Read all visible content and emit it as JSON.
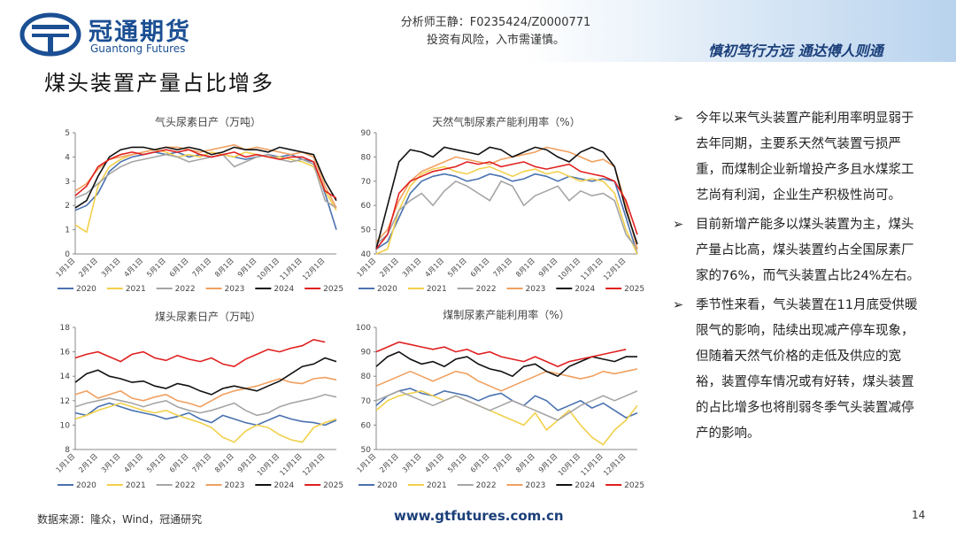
{
  "header": {
    "logo_cn": "冠通期货",
    "logo_en": "Guantong Futures",
    "analyst": "分析师王静：F0235424/Z0000771",
    "risk": "投资有风险，入市需谨慎。",
    "slogan": "慎初笃行方远  通达傅人则通"
  },
  "title": "煤头装置产量占比增多",
  "chart_data": [
    {
      "type": "line",
      "title": "气头尿素日产（万吨）",
      "categories": [
        "1月1日",
        null,
        "2月1日",
        null,
        "3月1日",
        null,
        "4月1日",
        null,
        "5月1日",
        null,
        "6月1日",
        null,
        "7月1日",
        null,
        "8月1日",
        null,
        "9月1日",
        null,
        "10月1日",
        null,
        "11月1日",
        null,
        "12月1日",
        null
      ],
      "ylim": [
        0,
        5
      ],
      "yticks": [
        0,
        1,
        2,
        3,
        4,
        5
      ],
      "series": [
        {
          "name": "2020",
          "color": "#4a72b0",
          "values": [
            1.8,
            2.0,
            2.5,
            3.4,
            3.8,
            4.0,
            4.1,
            4.2,
            4.1,
            4.2,
            4.0,
            4.1,
            4.0,
            4.1,
            4.0,
            3.9,
            4.0,
            4.1,
            4.0,
            4.1,
            3.9,
            3.8,
            2.5,
            1.0
          ]
        },
        {
          "name": "2021",
          "color": "#f2d04b",
          "values": [
            1.2,
            0.9,
            2.8,
            3.6,
            3.9,
            4.1,
            4.2,
            4.3,
            4.2,
            4.0,
            4.1,
            4.0,
            4.2,
            4.1,
            4.0,
            4.2,
            4.1,
            4.0,
            4.0,
            3.9,
            3.8,
            3.6,
            2.6,
            1.8
          ]
        },
        {
          "name": "2022",
          "color": "#a5a5a5",
          "values": [
            2.3,
            2.5,
            2.9,
            3.3,
            3.6,
            3.8,
            3.9,
            4.0,
            4.1,
            4.0,
            3.8,
            3.9,
            4.0,
            4.1,
            3.6,
            3.8,
            4.0,
            4.1,
            3.9,
            3.8,
            3.9,
            3.7,
            2.2,
            1.9
          ]
        },
        {
          "name": "2023",
          "color": "#f0a060",
          "values": [
            2.6,
            2.9,
            3.5,
            3.9,
            4.0,
            4.1,
            4.2,
            4.3,
            4.4,
            4.4,
            4.3,
            4.2,
            4.3,
            4.4,
            4.5,
            4.3,
            4.4,
            4.3,
            4.2,
            4.1,
            4.2,
            4.0,
            2.8,
            1.9
          ]
        },
        {
          "name": "2024",
          "color": "#111111",
          "values": [
            1.9,
            2.2,
            3.2,
            4.0,
            4.3,
            4.4,
            4.4,
            4.3,
            4.4,
            4.3,
            4.4,
            4.3,
            4.1,
            4.2,
            4.4,
            4.3,
            4.3,
            4.2,
            4.4,
            4.3,
            4.2,
            4.1,
            3.0,
            2.2
          ]
        },
        {
          "name": "2025",
          "color": "#e02020",
          "values": [
            2.4,
            2.8,
            3.6,
            3.9,
            4.1,
            4.2,
            4.1,
            4.2,
            4.3,
            4.2,
            4.3,
            4.1,
            4.0,
            4.1,
            4.2,
            4.0,
            4.1,
            4.0,
            3.9,
            4.0,
            4.0,
            3.8,
            2.6,
            2.3
          ]
        }
      ]
    },
    {
      "type": "line",
      "title": "天然气制尿素产能利用率（%）",
      "categories": [
        "1月1日",
        null,
        "2月1日",
        null,
        "3月1日",
        null,
        "4月1日",
        null,
        "5月1日",
        null,
        "6月1日",
        null,
        "7月1日",
        null,
        "8月1日",
        null,
        "9月1日",
        null,
        "10月1日",
        null,
        "11月1日",
        null,
        "12月1日",
        null
      ],
      "ylim": [
        40,
        90
      ],
      "yticks": [
        40,
        50,
        60,
        70,
        80,
        90
      ],
      "series": [
        {
          "name": "2020",
          "color": "#4a72b0",
          "values": [
            42,
            45,
            55,
            65,
            70,
            72,
            73,
            72,
            70,
            71,
            73,
            72,
            70,
            71,
            73,
            72,
            70,
            72,
            71,
            70,
            71,
            70,
            55,
            40
          ]
        },
        {
          "name": "2021",
          "color": "#f2d04b",
          "values": [
            40,
            42,
            58,
            68,
            73,
            75,
            76,
            74,
            73,
            75,
            76,
            74,
            72,
            74,
            75,
            73,
            74,
            72,
            70,
            71,
            70,
            65,
            50,
            40
          ]
        },
        {
          "name": "2022",
          "color": "#a5a5a5",
          "values": [
            44,
            48,
            58,
            62,
            65,
            60,
            66,
            70,
            68,
            65,
            62,
            70,
            68,
            60,
            64,
            66,
            68,
            62,
            66,
            64,
            65,
            62,
            48,
            42
          ]
        },
        {
          "name": "2023",
          "color": "#f0a060",
          "values": [
            45,
            50,
            62,
            70,
            74,
            76,
            78,
            80,
            79,
            78,
            77,
            79,
            80,
            81,
            82,
            84,
            83,
            82,
            80,
            78,
            79,
            76,
            60,
            42
          ]
        },
        {
          "name": "2024",
          "color": "#111111",
          "values": [
            42,
            60,
            78,
            83,
            82,
            80,
            84,
            83,
            82,
            81,
            84,
            83,
            80,
            82,
            84,
            83,
            80,
            78,
            82,
            84,
            82,
            76,
            58,
            44
          ]
        },
        {
          "name": "2025",
          "color": "#e02020",
          "values": [
            42,
            48,
            65,
            70,
            72,
            74,
            75,
            76,
            78,
            77,
            78,
            76,
            77,
            78,
            76,
            75,
            76,
            77,
            74,
            73,
            72,
            70,
            62,
            48
          ]
        }
      ]
    },
    {
      "type": "line",
      "title": "煤头尿素日产（万吨）",
      "categories": [
        "1月1日",
        null,
        "2月1日",
        null,
        "3月1日",
        null,
        "4月1日",
        null,
        "5月1日",
        null,
        "6月1日",
        null,
        "7月1日",
        null,
        "8月1日",
        null,
        "9月1日",
        null,
        "10月1日",
        null,
        "11月1日",
        null,
        "12月1日",
        null
      ],
      "ylim": [
        8,
        18
      ],
      "yticks": [
        8,
        10,
        12,
        14,
        16,
        18
      ],
      "series": [
        {
          "name": "2020",
          "color": "#4a72b0",
          "values": [
            11.0,
            10.8,
            11.5,
            11.8,
            11.5,
            11.2,
            11.0,
            10.8,
            10.5,
            10.7,
            11.0,
            10.5,
            10.2,
            10.8,
            10.5,
            10.2,
            10.0,
            10.4,
            10.8,
            10.5,
            10.3,
            10.2,
            10.0,
            10.4
          ]
        },
        {
          "name": "2021",
          "color": "#f2d04b",
          "values": [
            10.5,
            10.8,
            11.2,
            11.5,
            11.8,
            11.5,
            11.2,
            11.0,
            11.2,
            10.8,
            10.5,
            10.2,
            9.8,
            9.0,
            8.6,
            9.5,
            10.0,
            9.8,
            9.2,
            8.8,
            8.6,
            9.8,
            10.2,
            10.5
          ]
        },
        {
          "name": "2022",
          "color": "#a5a5a5",
          "values": [
            11.5,
            11.8,
            12.0,
            12.2,
            12.0,
            11.8,
            11.5,
            11.8,
            12.0,
            11.5,
            11.2,
            11.0,
            11.2,
            11.5,
            11.8,
            11.2,
            10.8,
            11.0,
            11.5,
            11.8,
            12.0,
            12.2,
            12.5,
            12.3
          ]
        },
        {
          "name": "2023",
          "color": "#f0a060",
          "values": [
            12.5,
            12.8,
            12.2,
            12.5,
            12.8,
            12.2,
            12.0,
            12.3,
            12.5,
            12.0,
            11.8,
            11.5,
            12.0,
            12.5,
            12.8,
            13.0,
            13.2,
            13.5,
            13.8,
            13.5,
            13.4,
            13.8,
            13.9,
            13.7
          ]
        },
        {
          "name": "2024",
          "color": "#111111",
          "values": [
            13.5,
            14.2,
            14.5,
            14.0,
            13.8,
            13.5,
            13.6,
            13.2,
            13.0,
            13.4,
            13.2,
            12.8,
            12.5,
            13.0,
            13.2,
            13.0,
            12.8,
            13.2,
            13.6,
            14.2,
            14.8,
            15.0,
            15.5,
            15.2
          ]
        },
        {
          "name": "2025",
          "color": "#e02020",
          "values": [
            15.5,
            15.8,
            16.0,
            15.6,
            15.2,
            15.8,
            16.0,
            15.5,
            15.3,
            15.7,
            15.4,
            15.2,
            15.5,
            15.0,
            14.8,
            15.4,
            15.8,
            16.2,
            16.0,
            16.3,
            16.5,
            17.0,
            16.8,
            null
          ]
        }
      ]
    },
    {
      "type": "line",
      "title": "煤制尿素产能利用率（%）",
      "categories": [
        "1月1日",
        null,
        "2月1日",
        null,
        "3月1日",
        null,
        "4月1日",
        null,
        "5月1日",
        null,
        "6月1日",
        null,
        "7月1日",
        null,
        "8月1日",
        null,
        "9月1日",
        null,
        "10月1日",
        null,
        "11月1日",
        null,
        "12月1日",
        null
      ],
      "ylim": [
        50,
        100
      ],
      "yticks": [
        50,
        60,
        70,
        80,
        90,
        100
      ],
      "series": [
        {
          "name": "2020",
          "color": "#4a72b0",
          "values": [
            68,
            72,
            74,
            75,
            73,
            72,
            74,
            73,
            72,
            70,
            72,
            73,
            70,
            68,
            72,
            70,
            66,
            68,
            70,
            67,
            69,
            66,
            63,
            65
          ]
        },
        {
          "name": "2021",
          "color": "#f2d04b",
          "values": [
            66,
            70,
            72,
            73,
            74,
            72,
            70,
            72,
            70,
            68,
            66,
            64,
            62,
            60,
            65,
            58,
            62,
            66,
            60,
            55,
            52,
            58,
            62,
            68
          ]
        },
        {
          "name": "2022",
          "color": "#a5a5a5",
          "values": [
            70,
            72,
            74,
            72,
            70,
            68,
            70,
            72,
            70,
            68,
            66,
            68,
            70,
            68,
            66,
            64,
            62,
            65,
            68,
            70,
            72,
            70,
            72,
            74
          ]
        },
        {
          "name": "2023",
          "color": "#f0a060",
          "values": [
            76,
            78,
            80,
            82,
            80,
            78,
            80,
            82,
            81,
            78,
            76,
            74,
            76,
            78,
            80,
            82,
            81,
            80,
            79,
            80,
            82,
            81,
            82,
            83
          ]
        },
        {
          "name": "2024",
          "color": "#111111",
          "values": [
            84,
            88,
            90,
            87,
            85,
            86,
            84,
            87,
            88,
            85,
            83,
            82,
            80,
            84,
            85,
            82,
            80,
            84,
            86,
            88,
            87,
            86,
            88,
            88
          ]
        },
        {
          "name": "2025",
          "color": "#e02020",
          "values": [
            90,
            92,
            94,
            93,
            92,
            91,
            92,
            90,
            91,
            89,
            90,
            88,
            87,
            86,
            88,
            86,
            84,
            86,
            87,
            88,
            89,
            90,
            91,
            null
          ]
        }
      ]
    }
  ],
  "bullets": [
    "今年以来气头装置产能利用率明显弱于去年同期，主要系天然气装置亏损严重，而煤制企业新增投产多且水煤浆工艺尚有利润，企业生产积极性尚可。",
    "目前新增产能多以煤头装置为主，煤头产量占比高，煤头装置约占全国尿素厂家的76%，而气头装置占比24%左右。",
    "季节性来看，气头装置在11月底受供暖限气的影响，陆续出现减产停车现象，但随着天然气价格的走低及供应的宽裕，装置停车情况或有好转，煤头装置的占比增多也将削弱冬季气头装置减停产的影响。"
  ],
  "footer": {
    "source": "数据来源：隆众，Wind，冠通研究",
    "url": "www.gtfutures.com.cn",
    "page": "14"
  }
}
